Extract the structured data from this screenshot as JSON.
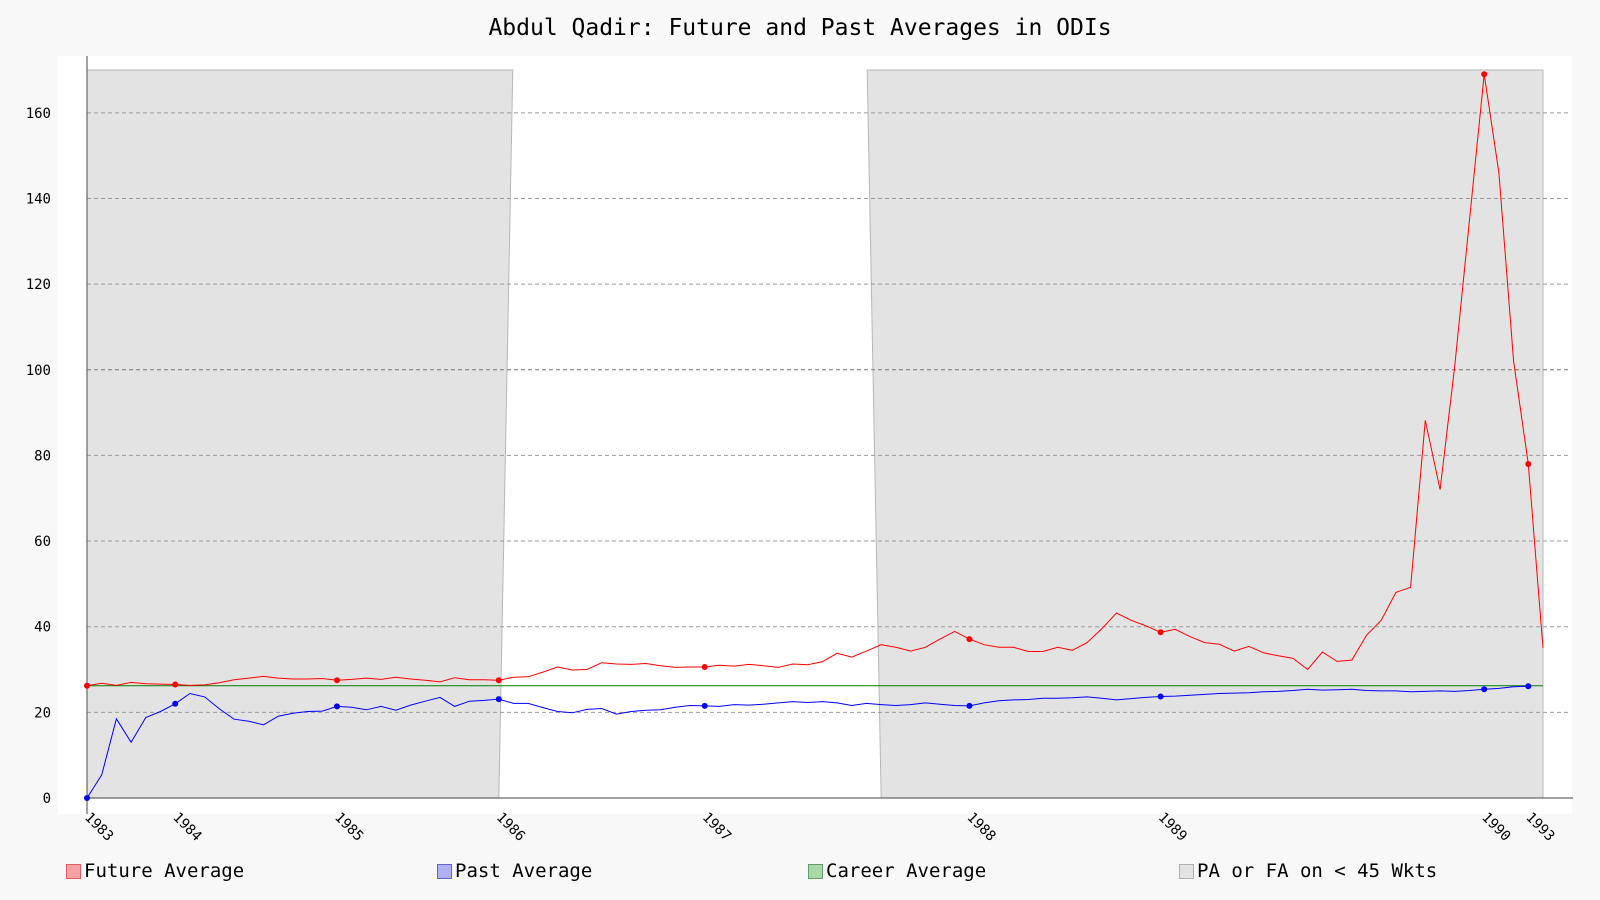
{
  "chart_data": {
    "type": "line",
    "title": "Abdul Qadir: Future and Past Averages in ODIs",
    "xlabel": "",
    "ylabel": "",
    "ylim": [
      0,
      170
    ],
    "yticks": [
      0,
      20,
      40,
      60,
      80,
      100,
      120,
      140,
      160
    ],
    "x_tick_labels": [
      {
        "label": "1983",
        "match": 0
      },
      {
        "label": "1984",
        "match": 6
      },
      {
        "label": "1985",
        "match": 17
      },
      {
        "label": "1986",
        "match": 28
      },
      {
        "label": "1987",
        "match": 42
      },
      {
        "label": "1988",
        "match": 60
      },
      {
        "label": "1989",
        "match": 73
      },
      {
        "label": "1990",
        "match": 95
      },
      {
        "label": "1993",
        "match": 98
      }
    ],
    "grid": true,
    "legend_position": "bottom",
    "colors": {
      "future": "#ff0000",
      "past": "#0000ff",
      "career": "#008000",
      "shade": "#e3e3e3"
    },
    "career_average": 26.2,
    "shaded_regions": [
      {
        "from_match": 0,
        "to_match": 28
      },
      {
        "from_match": 54,
        "to_match": 99
      }
    ],
    "series": [
      {
        "name": "Future Average",
        "marker_indices": [
          0,
          6,
          17,
          28,
          42,
          60,
          73,
          95,
          98
        ],
        "values": [
          26.2,
          26.8,
          26.3,
          27.0,
          26.7,
          26.6,
          26.5,
          26.3,
          26.4,
          26.9,
          27.6,
          28.0,
          28.4,
          28.0,
          27.8,
          27.8,
          27.9,
          27.5,
          27.7,
          28.0,
          27.7,
          28.2,
          27.8,
          27.5,
          27.1,
          28.1,
          27.6,
          27.6,
          27.5,
          28.2,
          28.3,
          29.4,
          30.6,
          29.9,
          30.0,
          31.6,
          31.3,
          31.2,
          31.4,
          30.9,
          30.5,
          30.6,
          30.6,
          31.0,
          30.8,
          31.2,
          30.9,
          30.5,
          31.3,
          31.1,
          31.8,
          33.8,
          32.9,
          34.3,
          35.8,
          35.2,
          34.3,
          35.2,
          37.1,
          38.9,
          37.1,
          35.8,
          35.2,
          35.2,
          34.2,
          34.2,
          35.2,
          34.5,
          36.3,
          39.5,
          43.2,
          41.5,
          40.2,
          38.7,
          39.4,
          37.7,
          36.3,
          35.9,
          34.3,
          35.4,
          33.9,
          33.2,
          32.6,
          30.0,
          34.1,
          31.9,
          32.2,
          38.0,
          41.5,
          48.0,
          49.2,
          88.2,
          72.0,
          101.0,
          135.0,
          169.0,
          146.0,
          102.0,
          78.0,
          35.0
        ]
      },
      {
        "name": "Past Average",
        "marker_indices": [
          0,
          6,
          17,
          28,
          42,
          60,
          73,
          95,
          98
        ],
        "values": [
          0.0,
          5.4,
          18.5,
          13.0,
          18.8,
          20.2,
          22.0,
          24.4,
          23.6,
          20.8,
          18.4,
          17.9,
          17.1,
          19.1,
          19.8,
          20.2,
          20.3,
          21.4,
          21.2,
          20.6,
          21.4,
          20.5,
          21.7,
          22.6,
          23.5,
          21.4,
          22.6,
          22.8,
          23.1,
          22.1,
          22.1,
          21.1,
          20.2,
          19.9,
          20.7,
          20.9,
          19.6,
          20.2,
          20.5,
          20.6,
          21.2,
          21.6,
          21.5,
          21.4,
          21.8,
          21.7,
          21.9,
          22.2,
          22.5,
          22.3,
          22.5,
          22.2,
          21.6,
          22.1,
          21.8,
          21.6,
          21.8,
          22.2,
          21.9,
          21.6,
          21.5,
          22.2,
          22.7,
          22.9,
          23.0,
          23.3,
          23.3,
          23.4,
          23.6,
          23.3,
          22.9,
          23.2,
          23.5,
          23.7,
          23.8,
          24.0,
          24.2,
          24.4,
          24.5,
          24.6,
          24.8,
          24.9,
          25.1,
          25.4,
          25.2,
          25.3,
          25.4,
          25.1,
          25.0,
          25.0,
          24.8,
          24.9,
          25.0,
          24.9,
          25.1,
          25.4,
          25.6,
          26.0,
          26.1
        ]
      },
      {
        "name": "Career Average",
        "values": [
          26.2
        ]
      }
    ],
    "legend": [
      {
        "label": "Future Average",
        "color": "#f4a3a3",
        "border": "#e06060"
      },
      {
        "label": "Past Average",
        "color": "#b0b0f4",
        "border": "#6060e0"
      },
      {
        "label": "Career Average",
        "color": "#a8d8a8",
        "border": "#60a060"
      },
      {
        "label": "PA or FA on < 45 Wkts",
        "color": "#e3e3e3",
        "border": "#b0b0b0"
      }
    ]
  }
}
